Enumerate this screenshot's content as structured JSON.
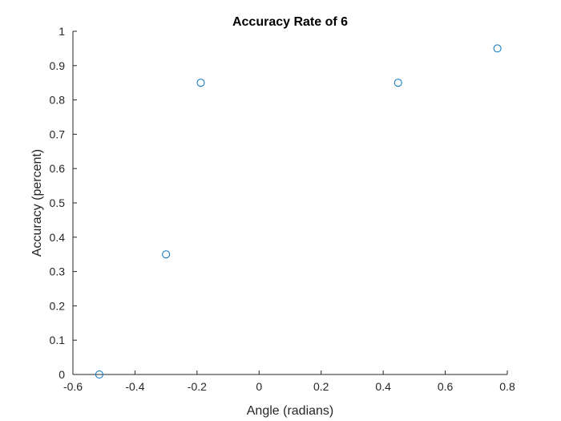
{
  "chart_data": {
    "type": "scatter",
    "title": "Accuracy Rate of 6",
    "xlabel": "Angle (radians)",
    "ylabel": "Accuracy (percent)",
    "xlim": [
      -0.6,
      0.8
    ],
    "ylim": [
      0,
      1
    ],
    "xticks": [
      -0.6,
      -0.4,
      -0.2,
      0,
      0.2,
      0.4,
      0.6,
      0.8
    ],
    "xtick_labels": [
      "-0.6",
      "-0.4",
      "-0.2",
      "0",
      "0.2",
      "0.4",
      "0.6",
      "0.8"
    ],
    "yticks": [
      0,
      0.1,
      0.2,
      0.3,
      0.4,
      0.5,
      0.6,
      0.7,
      0.8,
      0.9,
      1
    ],
    "ytick_labels": [
      "0",
      "0.1",
      "0.2",
      "0.3",
      "0.4",
      "0.5",
      "0.6",
      "0.7",
      "0.8",
      "0.9",
      "1"
    ],
    "grid": false,
    "marker": "circle-open",
    "marker_color": "#0072bd",
    "points": [
      {
        "x": -0.515,
        "y": 0.0
      },
      {
        "x": -0.3,
        "y": 0.35
      },
      {
        "x": -0.188,
        "y": 0.85
      },
      {
        "x": 0.448,
        "y": 0.85
      },
      {
        "x": 0.768,
        "y": 0.95
      }
    ]
  }
}
